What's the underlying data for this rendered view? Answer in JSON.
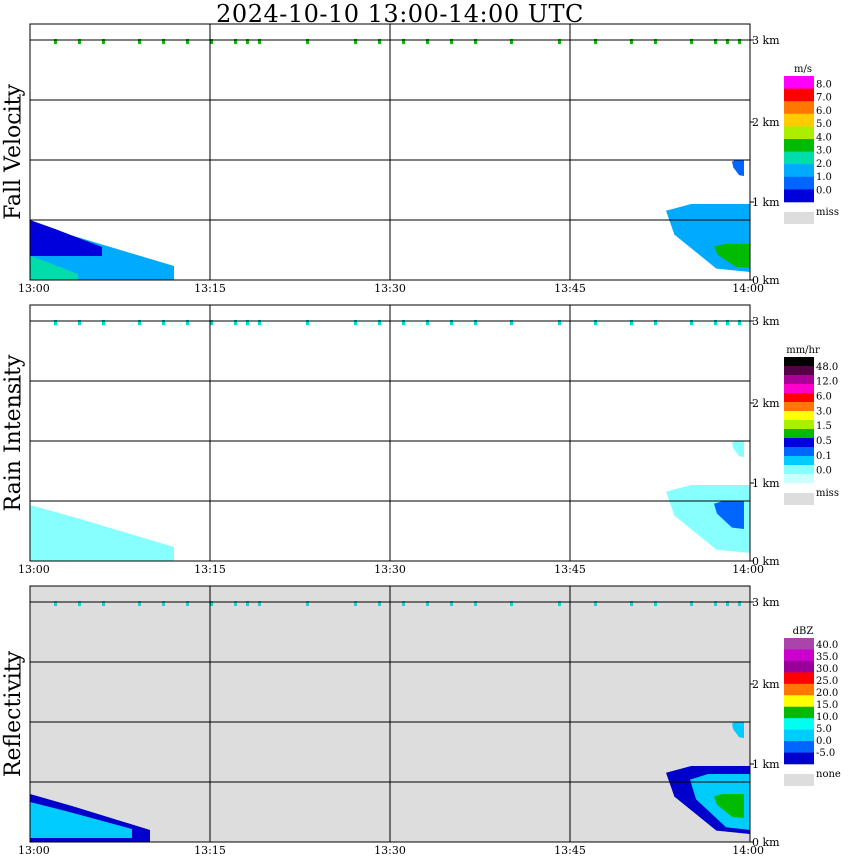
{
  "title": "2024-10-10   13:00-14:00 UTC",
  "chart_data": [
    {
      "type": "heatmap",
      "id": "fall-velocity",
      "ylabel": "Fall Velocity",
      "x_ticks": [
        "13:00",
        "13:15",
        "13:30",
        "13:45",
        "14:00"
      ],
      "y_ticks": [
        "0 km",
        "1 km",
        "2 km",
        "3 km"
      ],
      "xlim": [
        "13:00",
        "14:00"
      ],
      "ylim_km": [
        0,
        3.3
      ],
      "background": "#ffffff",
      "colorbar": {
        "unit": "m/s",
        "labels": [
          "8.0",
          "7.0",
          "6.0",
          "5.0",
          "4.0",
          "3.0",
          "2.0",
          "1.0",
          "0.0"
        ],
        "colors": [
          "#ff00ff",
          "#ff0000",
          "#ff7700",
          "#ffcc00",
          "#aaee00",
          "#00bb00",
          "#00ddaa",
          "#00aaff",
          "#0066ff",
          "#0000dd"
        ],
        "miss_label": "miss",
        "miss_color": "#dddddd"
      },
      "features": [
        {
          "name": "early-echo-cyan",
          "t0": 0,
          "t1": 12,
          "h0": 0.0,
          "h1": 0.7,
          "color": "#00aaff"
        },
        {
          "name": "early-echo-blue",
          "t0": 0,
          "t1": 6,
          "h0": 0.3,
          "h1": 0.75,
          "color": "#0000dd"
        },
        {
          "name": "early-echo-core",
          "t0": 0,
          "t1": 4,
          "h0": 0.0,
          "h1": 0.3,
          "color": "#00ddaa"
        },
        {
          "name": "late-echo-cyan",
          "t0": 53,
          "t1": 60,
          "h0": 0.1,
          "h1": 0.95,
          "color": "#00aaff"
        },
        {
          "name": "late-echo-green",
          "t0": 57,
          "t1": 60,
          "h0": 0.15,
          "h1": 0.45,
          "color": "#00bb00"
        },
        {
          "name": "late-echo-aloft",
          "t0": 58.5,
          "t1": 59.5,
          "h0": 1.3,
          "h1": 1.5,
          "color": "#0066ff"
        }
      ],
      "top_band_color": "#00bb00"
    },
    {
      "type": "heatmap",
      "id": "rain-intensity",
      "ylabel": "Rain Intensity",
      "x_ticks": [
        "13:00",
        "13:15",
        "13:30",
        "13:45",
        "14:00"
      ],
      "y_ticks": [
        "0 km",
        "1 km",
        "2 km",
        "3 km"
      ],
      "xlim": [
        "13:00",
        "14:00"
      ],
      "ylim_km": [
        0,
        3.3
      ],
      "background": "#ffffff",
      "colorbar": {
        "unit": "mm/hr",
        "labels": [
          "48.0",
          "12.0",
          "6.0",
          "3.0",
          "1.5",
          "0.5",
          "0.1",
          "0.0"
        ],
        "colors": [
          "#000000",
          "#550044",
          "#aa0099",
          "#ff00cc",
          "#ff0000",
          "#ff7700",
          "#ffff00",
          "#aaee00",
          "#00bb00",
          "#0000dd",
          "#0066ff",
          "#00ccff",
          "#88ffff",
          "#ccffff"
        ],
        "miss_label": "miss",
        "miss_color": "#dddddd"
      },
      "features": [
        {
          "name": "early-rain",
          "t0": 0,
          "t1": 12,
          "h0": 0.0,
          "h1": 0.7,
          "color": "#88ffff"
        },
        {
          "name": "late-rain",
          "t0": 53,
          "t1": 60,
          "h0": 0.1,
          "h1": 0.95,
          "color": "#88ffff"
        },
        {
          "name": "late-rain-core",
          "t0": 57,
          "t1": 59.5,
          "h0": 0.4,
          "h1": 0.75,
          "color": "#0066ff"
        },
        {
          "name": "late-rain-aloft",
          "t0": 58.5,
          "t1": 59.5,
          "h0": 1.3,
          "h1": 1.5,
          "color": "#88ffff"
        }
      ],
      "top_band_color": "#00ddcc"
    },
    {
      "type": "heatmap",
      "id": "reflectivity",
      "ylabel": "Reflectivity",
      "x_ticks": [
        "13:00",
        "13:15",
        "13:30",
        "13:45",
        "14:00"
      ],
      "y_ticks": [
        "0 km",
        "1 km",
        "2 km",
        "3 km"
      ],
      "xlim": [
        "13:00",
        "14:00"
      ],
      "ylim_km": [
        0,
        3.3
      ],
      "background": "#dddddd",
      "colorbar": {
        "unit": "dBZ",
        "labels": [
          "40.0",
          "35.0",
          "30.0",
          "25.0",
          "20.0",
          "15.0",
          "10.0",
          "5.0",
          "0.0",
          "-5.0"
        ],
        "colors": [
          "#aa44aa",
          "#cc00cc",
          "#990099",
          "#ff0000",
          "#ff7700",
          "#ffff00",
          "#00bb00",
          "#00ffee",
          "#00ccff",
          "#0066ff",
          "#0000cc"
        ],
        "miss_label": "none",
        "miss_color": "#dddddd"
      },
      "features": [
        {
          "name": "early-refl-outline",
          "t0": 0,
          "t1": 10,
          "h0": 0.0,
          "h1": 0.6,
          "color": "#0000cc"
        },
        {
          "name": "early-refl-body",
          "t0": 0,
          "t1": 8.5,
          "h0": 0.05,
          "h1": 0.5,
          "color": "#00ccff"
        },
        {
          "name": "late-refl-outline",
          "t0": 53,
          "t1": 60,
          "h0": 0.1,
          "h1": 0.95,
          "color": "#0000cc"
        },
        {
          "name": "late-refl-body",
          "t0": 55,
          "t1": 60,
          "h0": 0.15,
          "h1": 0.85,
          "color": "#00ccff"
        },
        {
          "name": "late-refl-core",
          "t0": 57,
          "t1": 59.5,
          "h0": 0.3,
          "h1": 0.6,
          "color": "#00bb00"
        },
        {
          "name": "late-refl-aloft",
          "t0": 58.5,
          "t1": 59.5,
          "h0": 1.3,
          "h1": 1.5,
          "color": "#00ccff"
        }
      ],
      "top_band_color": "#00ddcc"
    }
  ]
}
